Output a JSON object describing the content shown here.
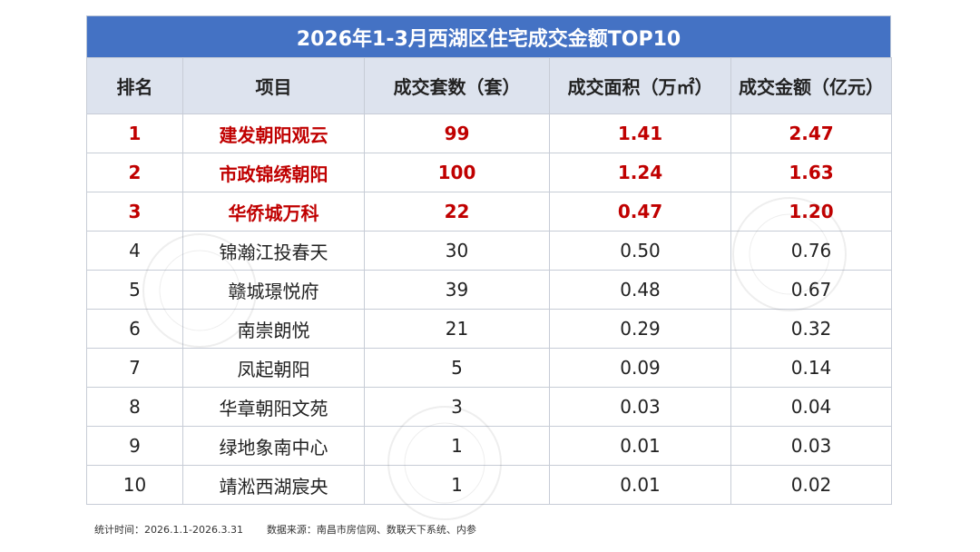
{
  "chart_data": {
    "type": "table",
    "title": "2026年1-3月西湖区住宅成交金额TOP10",
    "columns": [
      "排名",
      "项目",
      "成交套数（套）",
      "成交面积（万㎡）",
      "成交金额（亿元）"
    ],
    "rows": [
      [
        "1",
        "建发朝阳观云",
        "99",
        "1.41",
        "2.47"
      ],
      [
        "2",
        "市政锦绣朝阳",
        "100",
        "1.24",
        "1.63"
      ],
      [
        "3",
        "华侨城万科",
        "22",
        "0.47",
        "1.20"
      ],
      [
        "4",
        "锦瀚江投春天",
        "30",
        "0.50",
        "0.76"
      ],
      [
        "5",
        "赣城璟悦府",
        "39",
        "0.48",
        "0.67"
      ],
      [
        "6",
        "南崇朗悦",
        "21",
        "0.29",
        "0.32"
      ],
      [
        "7",
        "凤起朝阳",
        "5",
        "0.09",
        "0.14"
      ],
      [
        "8",
        "华章朝阳文苑",
        "3",
        "0.03",
        "0.04"
      ],
      [
        "9",
        "绿地象南中心",
        "1",
        "0.01",
        "0.03"
      ],
      [
        "10",
        "靖淞西湖宸央",
        "1",
        "0.01",
        "0.02"
      ]
    ],
    "highlighted_top_n": 3
  },
  "colors": {
    "title_bg": "#4472c4",
    "header_bg": "#dde3ee",
    "highlight_text": "#c00000"
  },
  "footer": {
    "period": "统计时间：2026.1.1-2026.3.31",
    "source": "数据来源：南昌市房信网、数联天下系统、内参"
  }
}
